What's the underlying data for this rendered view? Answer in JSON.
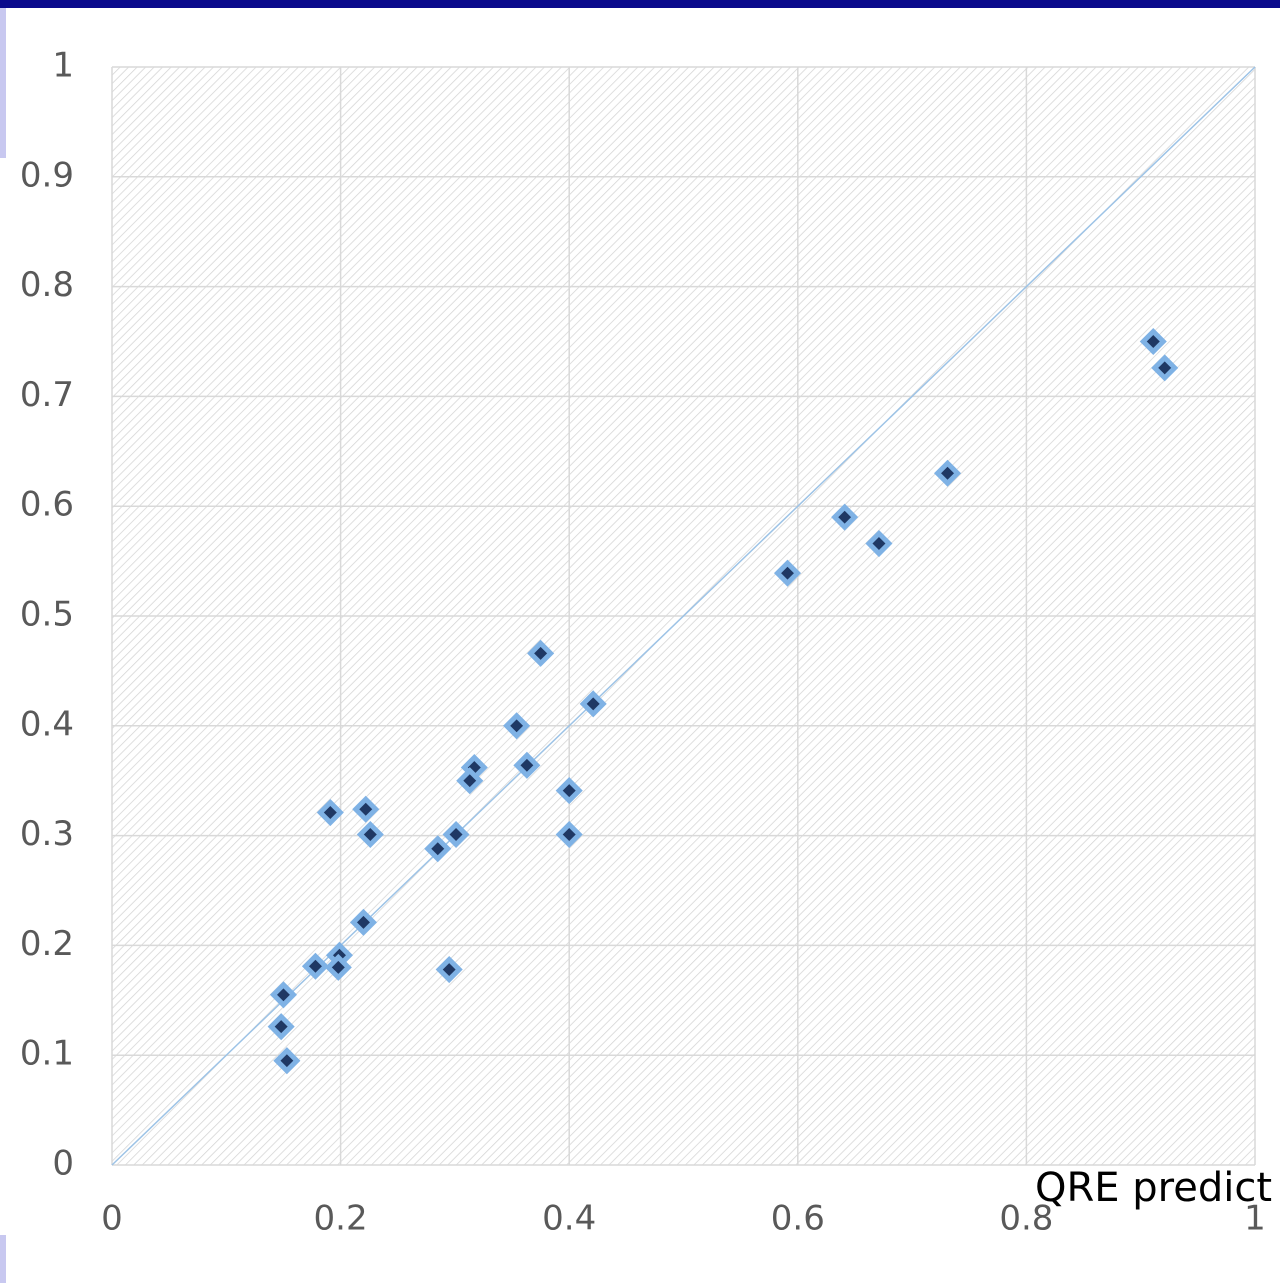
{
  "chart_data": {
    "type": "scatter",
    "x_label": "QRE predict",
    "xlim": [
      0,
      1
    ],
    "ylim": [
      0,
      1
    ],
    "xticks": [
      0,
      0.2,
      0.4,
      0.6,
      0.8,
      1
    ],
    "yticks": [
      0,
      0.1,
      0.2,
      0.3,
      0.4,
      0.5,
      0.6,
      0.7,
      0.8,
      0.9,
      1
    ],
    "grid": true,
    "series": [
      {
        "color": "#1f3864",
        "x": [
          0.911,
          0.921,
          0.731,
          0.641,
          0.671,
          0.591,
          0.375,
          0.421,
          0.354,
          0.317,
          0.313,
          0.363,
          0.4,
          0.4,
          0.191,
          0.222,
          0.226,
          0.301,
          0.285,
          0.22,
          0.199,
          0.198,
          0.178,
          0.295,
          0.15,
          0.148,
          0.153
        ],
        "values": [
          0.75,
          0.726,
          0.63,
          0.59,
          0.566,
          0.539,
          0.466,
          0.42,
          0.4,
          0.362,
          0.35,
          0.364,
          0.341,
          0.301,
          0.321,
          0.324,
          0.301,
          0.301,
          0.288,
          0.221,
          0.191,
          0.18,
          0.181,
          0.178,
          0.155,
          0.126,
          0.095
        ]
      }
    ]
  }
}
